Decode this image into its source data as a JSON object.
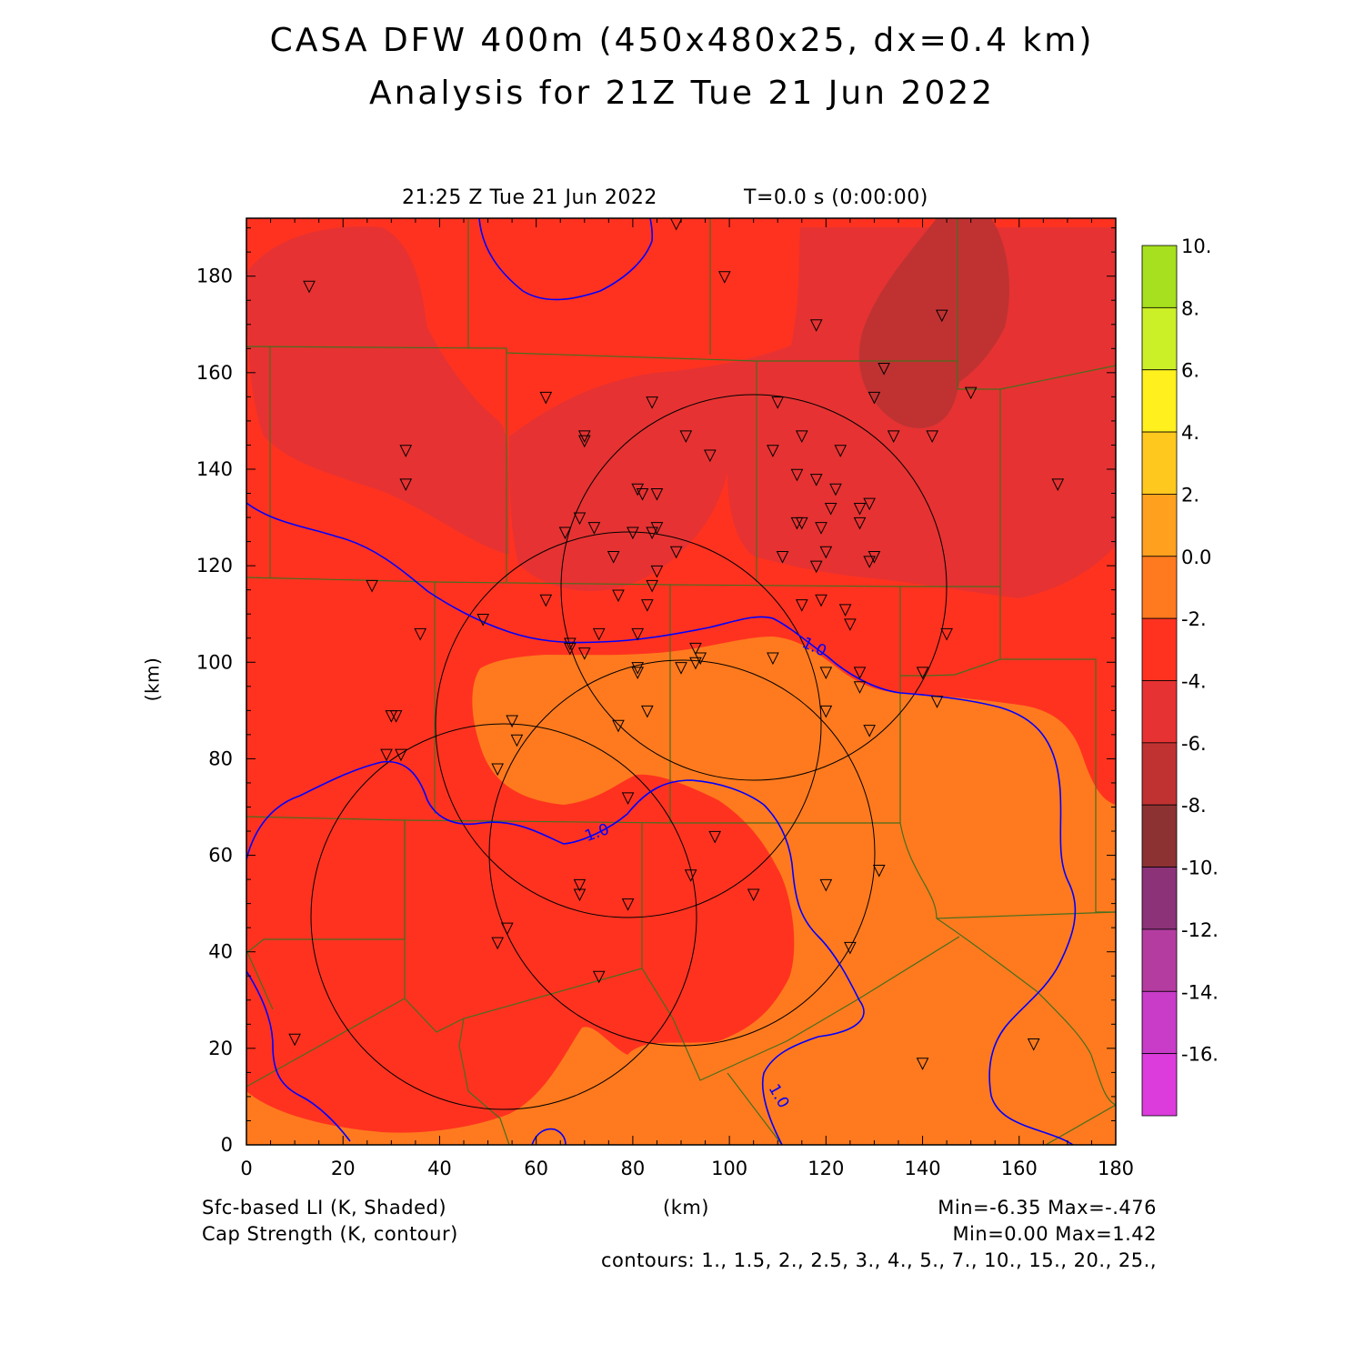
{
  "header": {
    "title_line1": "CASA DFW 400m (450x480x25, dx=0.4 km)",
    "title_line2": "Analysis for 21Z Tue 21 Jun 2022",
    "valid_time": "21:25 Z Tue 21 Jun 2022",
    "model_time": "T=0.0 s (0:00:00)"
  },
  "axes": {
    "xlabel": "(km)",
    "ylabel": "(km)",
    "xticks": [
      "0",
      "20",
      "40",
      "60",
      "80",
      "100",
      "120",
      "140",
      "160",
      "180"
    ],
    "yticks": [
      "0",
      "20",
      "40",
      "60",
      "80",
      "100",
      "120",
      "140",
      "160",
      "180"
    ],
    "xlim": [
      0,
      180
    ],
    "ylim": [
      0,
      192
    ]
  },
  "colorbar": {
    "labels": [
      "10.",
      "8.",
      "6.",
      "4.",
      "2.",
      "0.0",
      "-2.",
      "-4.",
      "-6.",
      "-8.",
      "-10.",
      "-12.",
      "-14.",
      "-16."
    ],
    "colors": [
      "#a6e01e",
      "#ccf028",
      "#fff01e",
      "#ffc81e",
      "#ffa01e",
      "#ff7a1e",
      "#ff3220",
      "#e63232",
      "#c03232",
      "#8c3232",
      "#8c3278",
      "#b43ca0",
      "#c83cc8",
      "#dc3cdc"
    ]
  },
  "field_colors": {
    "lt_-6": "#c03232",
    "-6_to_-4": "#e63232",
    "-4_to_-2": "#ff3220",
    "-2_to_0": "#ff7a1e",
    "contour": "#0000ff",
    "county_lines": "#466e1e"
  },
  "contour_labels": [
    "1.0",
    "1.0",
    "1.0"
  ],
  "footer": {
    "shaded_field": "Sfc-based LI (K, Shaded)",
    "contour_field": "Cap Strength (K, contour)",
    "x_units": "(km)",
    "shaded_range": "Min=-6.35 Max=-.476",
    "contour_range": "Min=0.00 Max=1.42",
    "contour_levels": "contours: 1., 1.5, 2., 2.5, 3., 4., 5., 7., 10., 15., 20., 25.,"
  },
  "radar_range_rings": [
    {
      "center_km": [
        106,
        115
      ],
      "radius_km": 40
    },
    {
      "center_km": [
        79,
        88
      ],
      "radius_km": 40
    },
    {
      "center_km": [
        90,
        61
      ],
      "radius_km": 40
    },
    {
      "center_km": [
        53,
        48
      ],
      "radius_km": 40
    }
  ],
  "station_markers_km": [
    [
      13,
      178
    ],
    [
      99,
      180
    ],
    [
      118,
      170
    ],
    [
      144,
      172
    ],
    [
      132,
      161
    ],
    [
      62,
      155
    ],
    [
      84,
      154
    ],
    [
      130,
      155
    ],
    [
      110,
      154
    ],
    [
      150,
      156
    ],
    [
      70,
      147
    ],
    [
      70,
      146
    ],
    [
      91,
      147
    ],
    [
      134,
      147
    ],
    [
      142,
      147
    ],
    [
      115,
      147
    ],
    [
      33,
      144
    ],
    [
      109,
      144
    ],
    [
      96,
      143
    ],
    [
      123,
      144
    ],
    [
      33,
      137
    ],
    [
      168,
      137
    ],
    [
      81,
      136
    ],
    [
      82,
      135
    ],
    [
      85,
      135
    ],
    [
      114,
      139
    ],
    [
      118,
      138
    ],
    [
      122,
      136
    ],
    [
      129,
      133
    ],
    [
      69,
      130
    ],
    [
      121,
      132
    ],
    [
      127,
      132
    ],
    [
      127,
      129
    ],
    [
      114,
      129
    ],
    [
      115,
      129
    ],
    [
      119,
      128
    ],
    [
      72,
      128
    ],
    [
      85,
      128
    ],
    [
      66,
      127
    ],
    [
      80,
      127
    ],
    [
      84,
      127
    ],
    [
      89,
      123
    ],
    [
      76,
      122
    ],
    [
      111,
      122
    ],
    [
      120,
      123
    ],
    [
      130,
      122
    ],
    [
      129,
      121
    ],
    [
      118,
      120
    ],
    [
      85,
      119
    ],
    [
      84,
      116
    ],
    [
      26,
      116
    ],
    [
      62,
      113
    ],
    [
      77,
      114
    ],
    [
      83,
      112
    ],
    [
      115,
      112
    ],
    [
      119,
      113
    ],
    [
      124,
      111
    ],
    [
      125,
      108
    ],
    [
      49,
      109
    ],
    [
      36,
      106
    ],
    [
      73,
      106
    ],
    [
      81,
      106
    ],
    [
      145,
      106
    ],
    [
      67,
      104
    ],
    [
      67,
      103
    ],
    [
      70,
      102
    ],
    [
      93,
      103
    ],
    [
      94,
      101
    ],
    [
      93,
      100
    ],
    [
      109,
      101
    ],
    [
      81,
      99
    ],
    [
      81,
      98
    ],
    [
      90,
      99
    ],
    [
      120,
      98
    ],
    [
      127,
      98
    ],
    [
      140,
      98
    ],
    [
      127,
      95
    ],
    [
      143,
      92
    ],
    [
      30,
      89
    ],
    [
      31,
      89
    ],
    [
      83,
      90
    ],
    [
      120,
      90
    ],
    [
      55,
      88
    ],
    [
      77,
      87
    ],
    [
      129,
      86
    ],
    [
      56,
      84
    ],
    [
      29,
      81
    ],
    [
      32,
      81
    ],
    [
      52,
      78
    ],
    [
      79,
      72
    ],
    [
      97,
      64
    ],
    [
      131,
      57
    ],
    [
      92,
      56
    ],
    [
      69,
      54
    ],
    [
      69,
      52
    ],
    [
      79,
      50
    ],
    [
      105,
      52
    ],
    [
      120,
      54
    ],
    [
      52,
      42
    ],
    [
      54,
      45
    ],
    [
      125,
      41
    ],
    [
      73,
      35
    ],
    [
      10,
      22
    ],
    [
      163,
      21
    ],
    [
      140,
      17
    ],
    [
      89,
      191
    ]
  ]
}
